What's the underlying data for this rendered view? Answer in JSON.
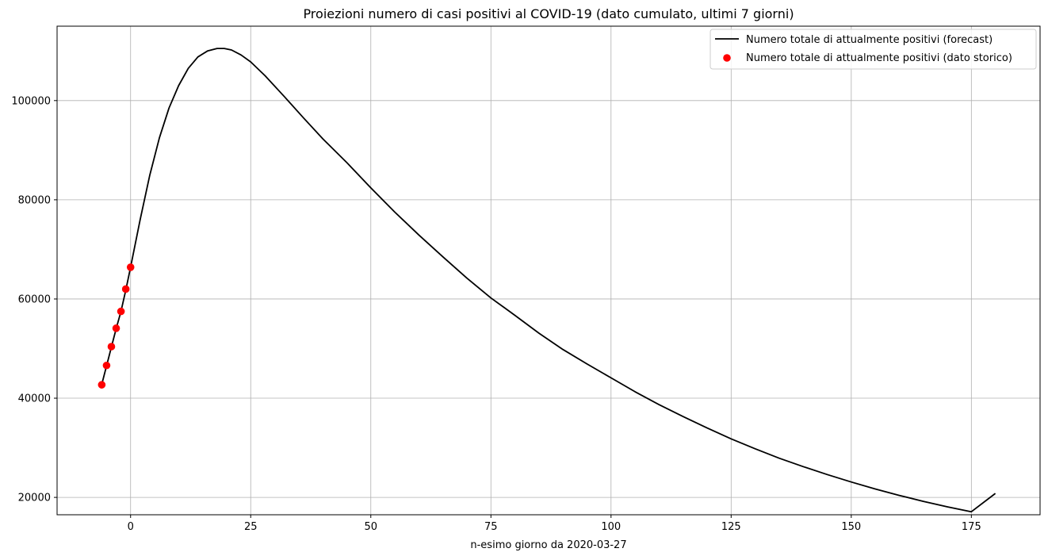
{
  "chart_data": {
    "type": "line",
    "title": "Proiezioni numero di casi positivi al COVID-19 (dato cumulato, ultimi 7 giorni)",
    "xlabel": "n-esimo giorno da 2020-03-27",
    "ylabel": "",
    "xlim": [
      -15.3,
      189.3
    ],
    "ylim": [
      16500,
      115000
    ],
    "xticks": [
      0,
      25,
      50,
      75,
      100,
      125,
      150,
      175
    ],
    "yticks": [
      20000,
      40000,
      60000,
      80000,
      100000
    ],
    "grid": true,
    "legend_position": "top-right",
    "series": [
      {
        "name": "Numero totale di attualmente positivi (forecast)",
        "style": "line",
        "color": "#000000",
        "x": [
          -6,
          -5,
          -4,
          -3,
          -2,
          -1,
          0,
          2,
          4,
          6,
          8,
          10,
          12,
          14,
          16,
          18,
          19.5,
          21,
          23,
          25,
          28,
          32,
          36,
          40,
          45,
          50,
          55,
          60,
          65,
          70,
          75,
          80,
          85,
          90,
          95,
          100,
          105,
          110,
          115,
          120,
          125,
          130,
          135,
          140,
          145,
          150,
          155,
          160,
          165,
          170,
          175,
          180
        ],
        "y": [
          42800,
          46500,
          50300,
          54000,
          57500,
          61800,
          66400,
          76000,
          85000,
          92500,
          98500,
          103000,
          106500,
          108800,
          110000,
          110500,
          110500,
          110200,
          109200,
          107800,
          105000,
          100800,
          96500,
          92300,
          87500,
          82400,
          77500,
          72900,
          68500,
          64200,
          60200,
          56700,
          53100,
          49800,
          46900,
          44100,
          41300,
          38700,
          36300,
          34000,
          31800,
          29800,
          27900,
          26200,
          24600,
          23100,
          21700,
          20400,
          19200,
          18100,
          17100,
          20800
        ]
      },
      {
        "name": "Numero totale di attualmente positivi (dato storico)",
        "style": "scatter",
        "color": "#ff0000",
        "x": [
          -6,
          -5,
          -4,
          -3,
          -2,
          -1,
          0
        ],
        "y": [
          42700,
          46600,
          50400,
          54100,
          57500,
          62000,
          66400
        ]
      }
    ]
  }
}
